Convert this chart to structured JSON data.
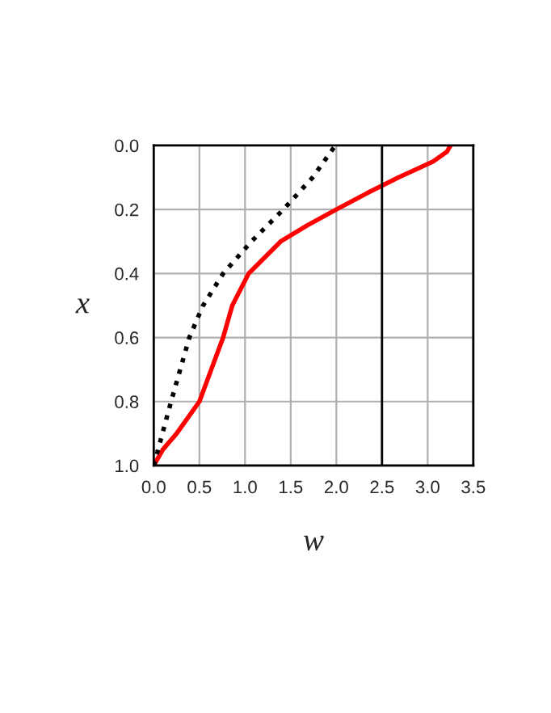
{
  "chart_data": {
    "type": "line",
    "xlabel": "w",
    "ylabel": "x",
    "xlim": [
      0.0,
      3.5
    ],
    "ylim": [
      1.0,
      0.0
    ],
    "xticks": [
      {
        "value": 0,
        "label": "0.0"
      },
      {
        "value": 0.5,
        "label": "0.5"
      },
      {
        "value": 1,
        "label": "1.0"
      },
      {
        "value": 1.5,
        "label": "1.5"
      },
      {
        "value": 2,
        "label": "2.0"
      },
      {
        "value": 2.5,
        "label": "2.5"
      },
      {
        "value": 3,
        "label": "3.0"
      },
      {
        "value": 3.5,
        "label": "3.5"
      }
    ],
    "yticks": [
      {
        "value": 0,
        "label": "0.0"
      },
      {
        "value": 0.2,
        "label": "0.2"
      },
      {
        "value": 0.4,
        "label": "0.4"
      },
      {
        "value": 0.6,
        "label": "0.6"
      },
      {
        "value": 0.8,
        "label": "0.8"
      },
      {
        "value": 1,
        "label": "1.0"
      }
    ],
    "grid": true,
    "legend": false,
    "ref_lines": [
      {
        "axis": "x",
        "value": 2.5,
        "color": "#000000"
      }
    ],
    "series": [
      {
        "color": "#ff0000",
        "line_style": "solid",
        "x": [
          0.0,
          0.1,
          0.25,
          0.5,
          0.63,
          0.76,
          0.86,
          1.04,
          1.39,
          1.68,
          2.0,
          2.33,
          2.68,
          3.06,
          3.21,
          3.25
        ],
        "values": [
          1.0,
          0.95,
          0.9,
          0.8,
          0.7,
          0.6,
          0.5,
          0.4,
          0.3,
          0.25,
          0.2,
          0.15,
          0.1,
          0.05,
          0.02,
          0.0
        ]
      },
      {
        "color": "#000000",
        "line_style": "dotted",
        "x": [
          0.0,
          0.19,
          0.39,
          0.54,
          0.76,
          1.07,
          1.42,
          1.74,
          1.99
        ],
        "values": [
          1.0,
          0.8,
          0.6,
          0.5,
          0.4,
          0.3,
          0.2,
          0.1,
          0.0
        ]
      }
    ]
  }
}
